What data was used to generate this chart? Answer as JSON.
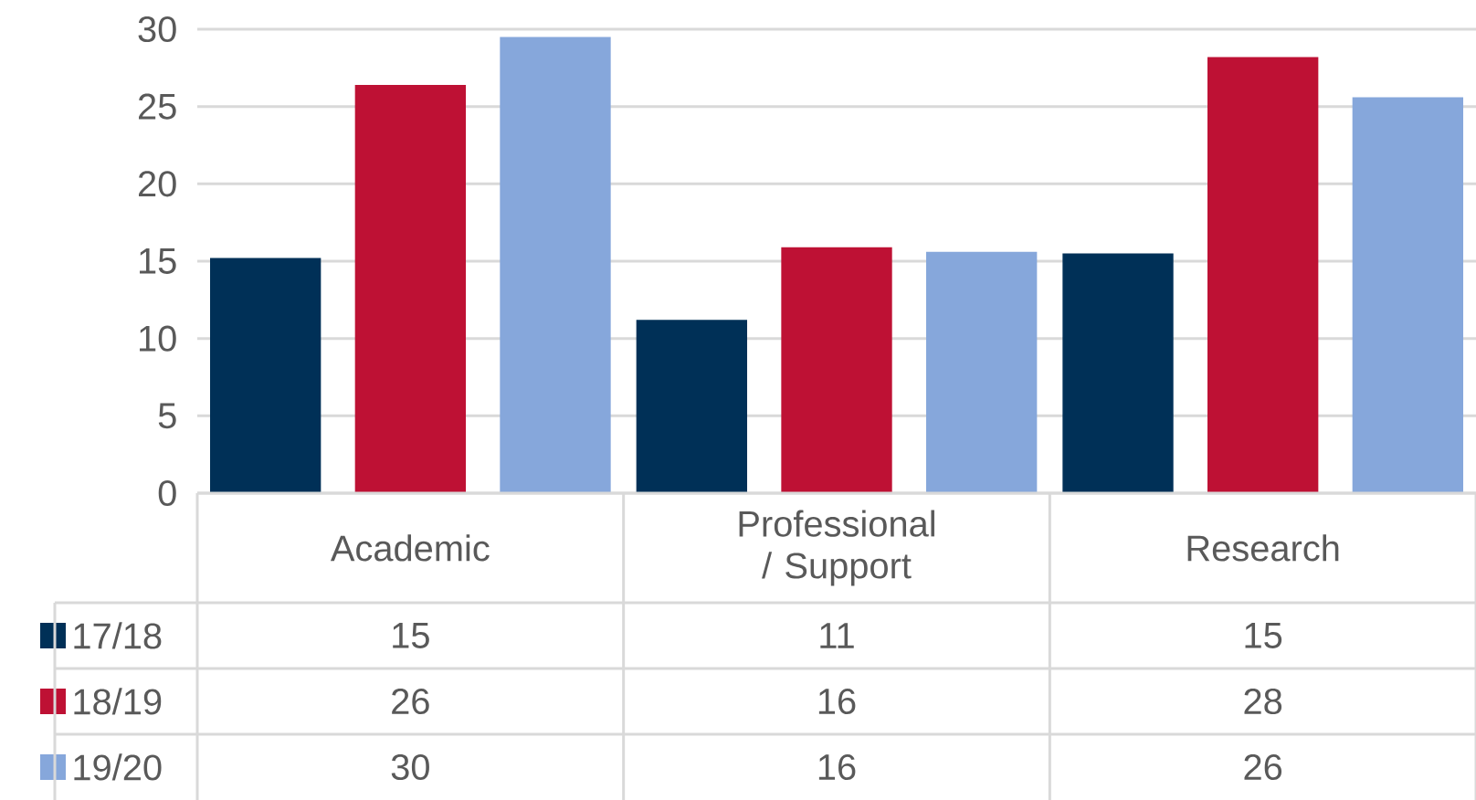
{
  "chart_data": {
    "type": "bar",
    "categories": [
      "Academic",
      "Professional / Support",
      "Research"
    ],
    "series": [
      {
        "name": "17/18",
        "color": "#003057",
        "values": [
          15.2,
          11.2,
          15.5
        ],
        "value_labels": [
          "15",
          "11",
          "15"
        ]
      },
      {
        "name": "18/19",
        "color": "#be1134",
        "values": [
          26.4,
          15.9,
          28.2
        ],
        "value_labels": [
          "26",
          "16",
          "28"
        ]
      },
      {
        "name": "19/20",
        "color": "#86a7db",
        "values": [
          29.5,
          15.6,
          25.6
        ],
        "value_labels": [
          "30",
          "16",
          "26"
        ]
      }
    ],
    "ylim": [
      0,
      30
    ],
    "yticks": [
      0,
      5,
      10,
      15,
      20,
      25,
      30
    ],
    "grid": "y",
    "legend": "bottom left"
  }
}
